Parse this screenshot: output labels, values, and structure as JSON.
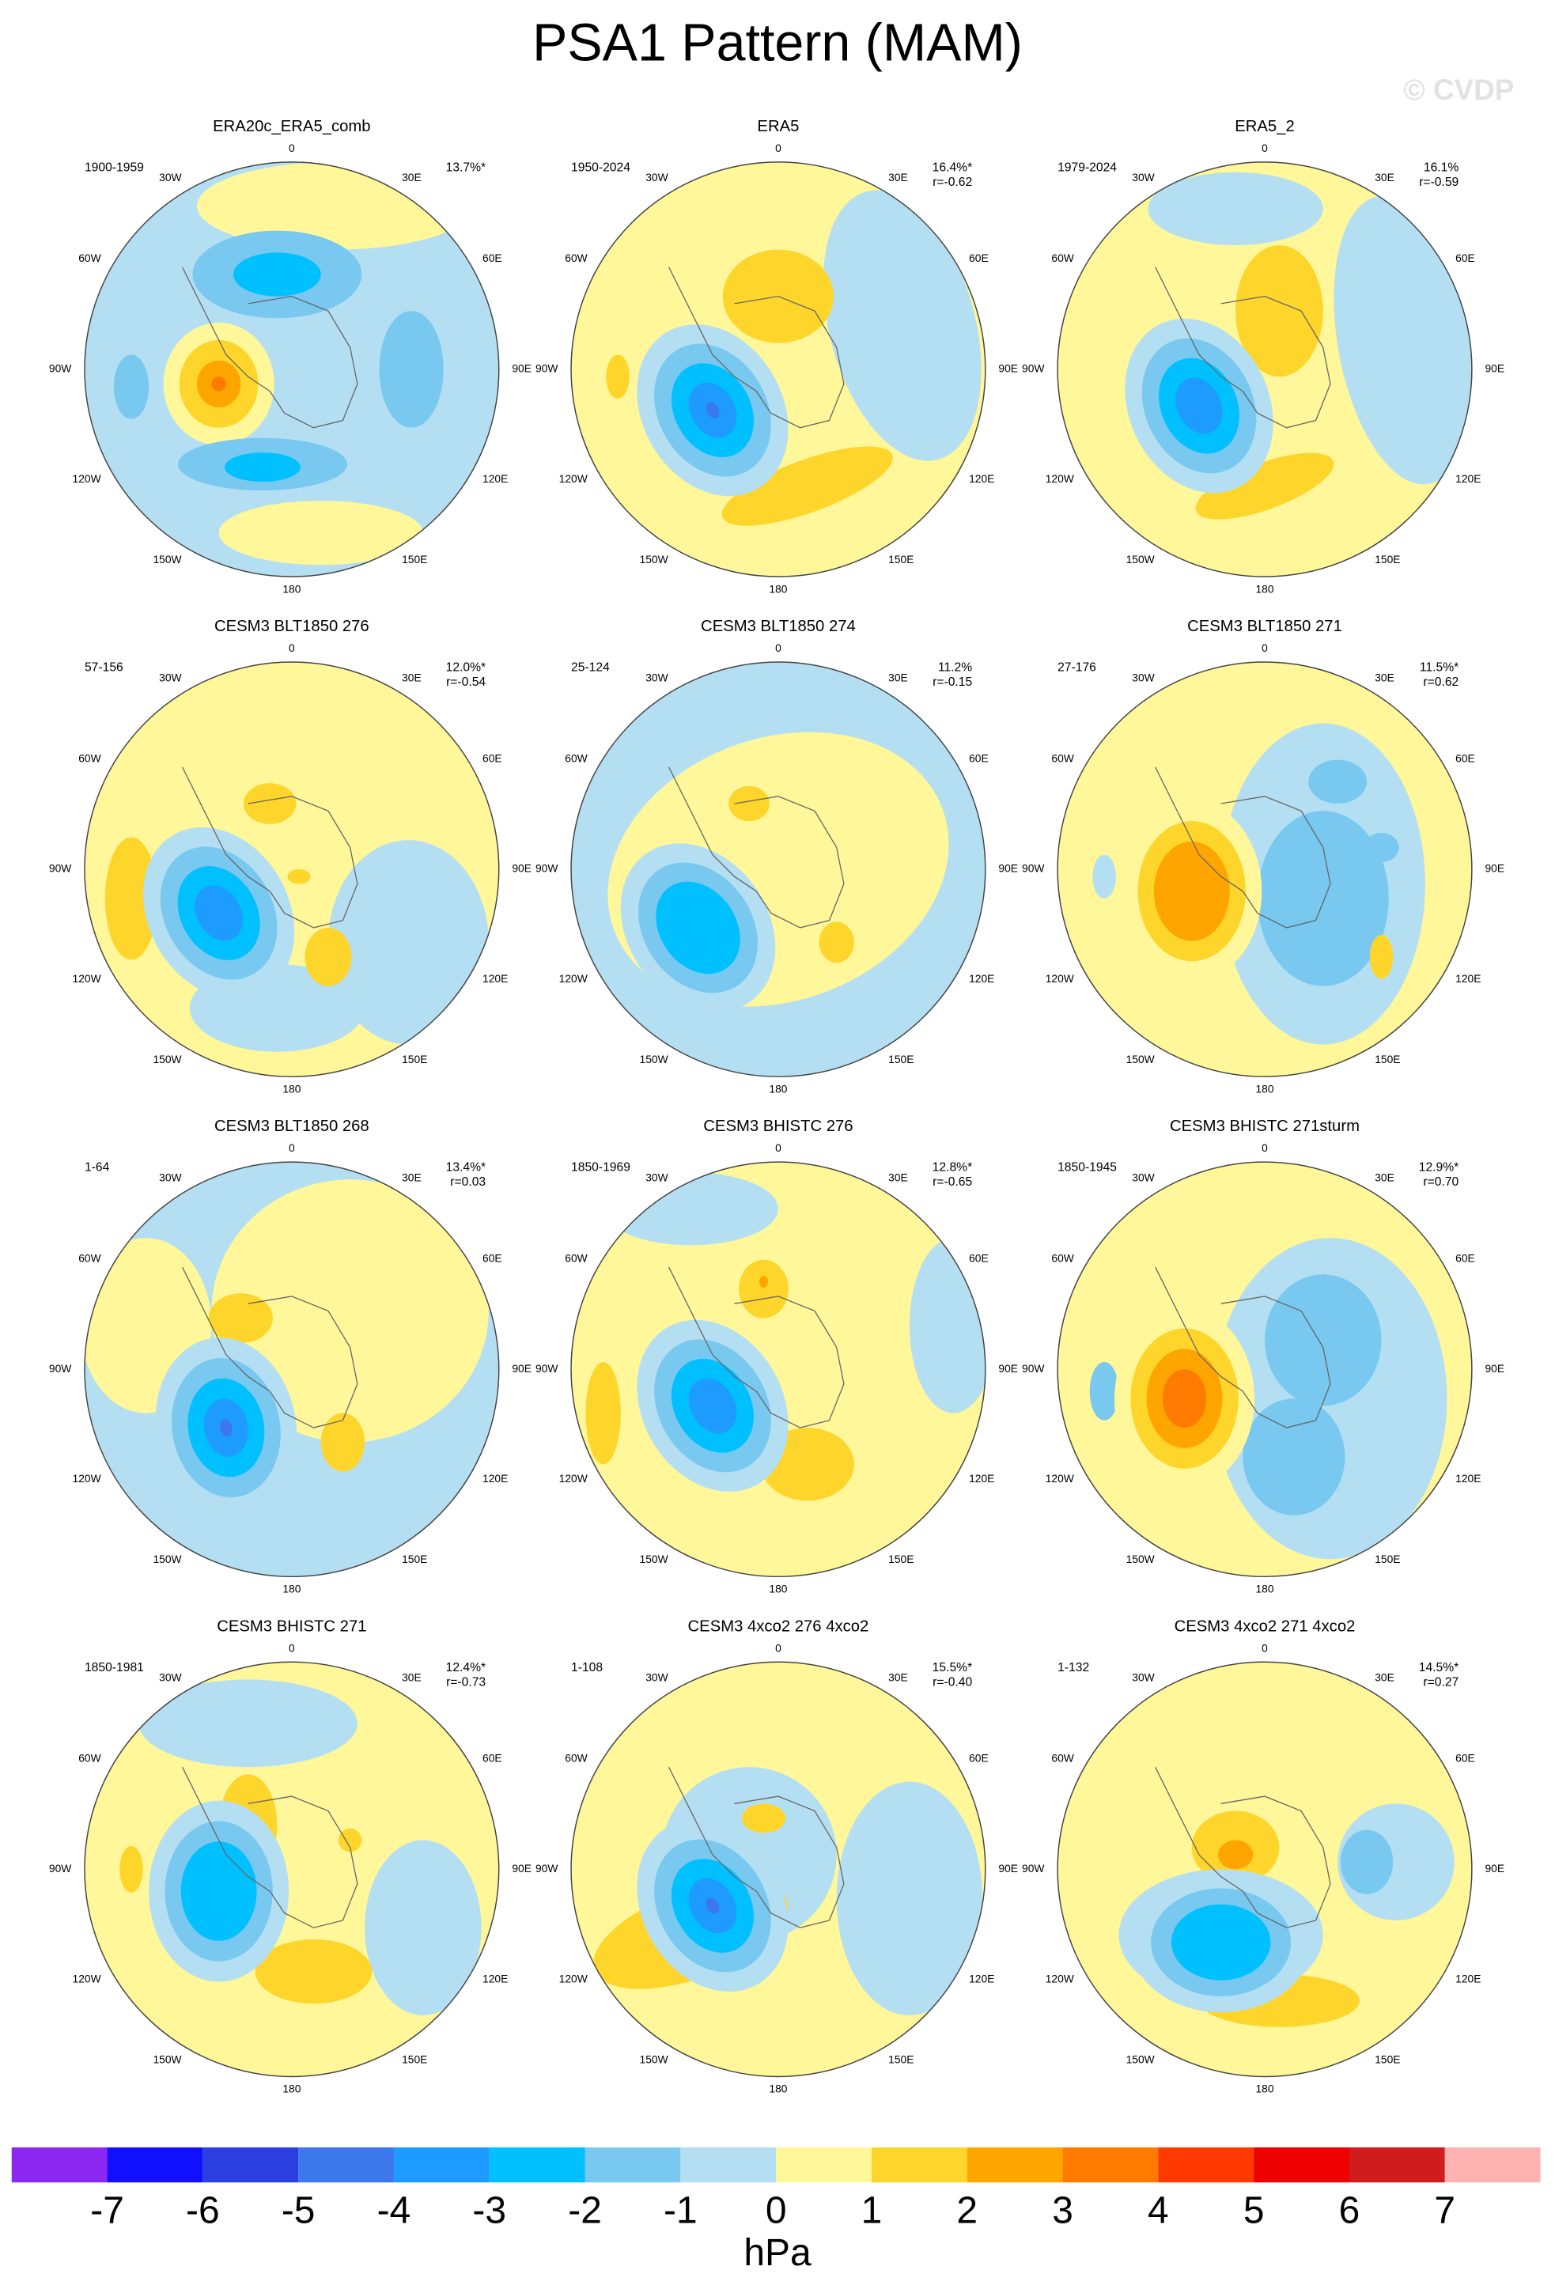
{
  "title": "PSA1 Pattern (MAM)",
  "watermark": "© CVDP",
  "panels": [
    {
      "title": "ERA20c_ERA5_comb",
      "period": "1900-1959",
      "pct": "13.7%*",
      "r": null
    },
    {
      "title": "ERA5",
      "period": "1950-2024",
      "pct": "16.4%*",
      "r": "r=-0.62"
    },
    {
      "title": "ERA5_2",
      "period": "1979-2024",
      "pct": "16.1%",
      "r": "r=-0.59"
    },
    {
      "title": "CESM3 BLT1850 276",
      "period": "57-156",
      "pct": "12.0%*",
      "r": "r=-0.54"
    },
    {
      "title": "CESM3 BLT1850 274",
      "period": "25-124",
      "pct": "11.2%",
      "r": "r=-0.15"
    },
    {
      "title": "CESM3 BLT1850 271",
      "period": "27-176",
      "pct": "11.5%*",
      "r": "r=0.62"
    },
    {
      "title": "CESM3 BLT1850 268",
      "period": "1-64",
      "pct": "13.4%*",
      "r": "r=0.03"
    },
    {
      "title": "CESM3 BHISTC 276",
      "period": "1850-1969",
      "pct": "12.8%*",
      "r": "r=-0.65"
    },
    {
      "title": "CESM3 BHISTC 271sturm",
      "period": "1850-1945",
      "pct": "12.9%*",
      "r": "r=0.70"
    },
    {
      "title": "CESM3 BHISTC 271",
      "period": "1850-1981",
      "pct": "12.4%*",
      "r": "r=-0.73"
    },
    {
      "title": "CESM3 4xco2 276 4xco2",
      "period": "1-108",
      "pct": "15.5%*",
      "r": "r=-0.40"
    },
    {
      "title": "CESM3 4xco2 271 4xco2",
      "period": "1-132",
      "pct": "14.5%*",
      "r": "r=0.27"
    }
  ],
  "lon_labels": [
    "0",
    "30E",
    "60E",
    "90E",
    "120E",
    "150E",
    "180",
    "150W",
    "120W",
    "90W",
    "60W",
    "30W"
  ],
  "colorbar": {
    "colors": [
      "#8b27f0",
      "#1010ff",
      "#2b3fe0",
      "#3a78ec",
      "#1e9bff",
      "#00c0ff",
      "#78c8f0",
      "#b4dff2",
      "#fff799",
      "#fed52a",
      "#ffa500",
      "#ff7a00",
      "#ff3a00",
      "#ee0000",
      "#d01c1c",
      "#ffb2b2"
    ],
    "ticks": [
      -7,
      -6,
      -5,
      -4,
      -3,
      -2,
      -1,
      0,
      1,
      2,
      3,
      4,
      5,
      6,
      7
    ],
    "unit": "hPa"
  }
}
